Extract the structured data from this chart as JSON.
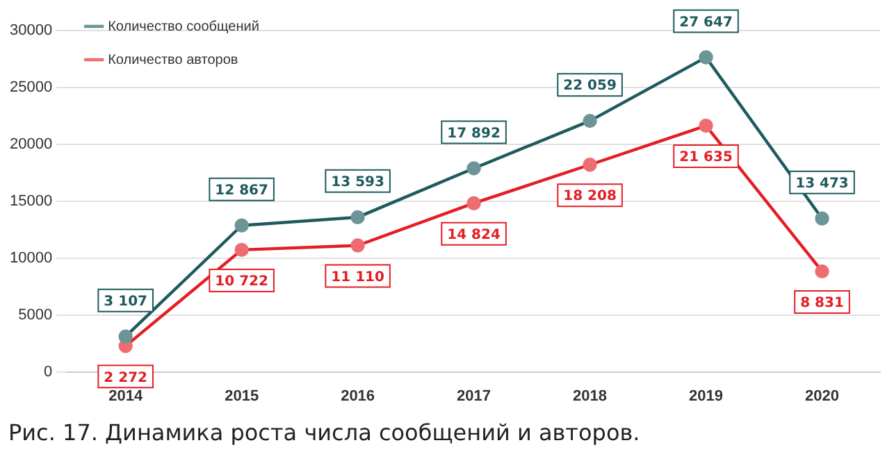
{
  "chart_data": {
    "type": "line",
    "categories": [
      "2014",
      "2015",
      "2016",
      "2017",
      "2018",
      "2019",
      "2020"
    ],
    "series": [
      {
        "name": "Количество сообщений",
        "color": "#1e5a5e",
        "values": [
          3107,
          12867,
          13593,
          17892,
          22059,
          27647,
          13473
        ],
        "value_labels": [
          "3 107",
          "12 867",
          "13 593",
          "17 892",
          "22 059",
          "27 647",
          "13 473"
        ]
      },
      {
        "name": "Количество авторов",
        "color": "#e31e24",
        "values": [
          2272,
          10722,
          11110,
          14824,
          18208,
          21635,
          8831
        ],
        "value_labels": [
          "2 272",
          "10 722",
          "11 110",
          "14 824",
          "18 208",
          "21 635",
          "8 831"
        ]
      }
    ],
    "ylim": [
      0,
      30000
    ],
    "yticks": [
      0,
      5000,
      10000,
      15000,
      20000,
      25000,
      30000
    ],
    "grid": "y",
    "legend": "top left",
    "marker": "circle",
    "line_style": "solid",
    "annotations": [
      "Рис. 17. Динамика роста числа сообщений и авторов."
    ]
  }
}
